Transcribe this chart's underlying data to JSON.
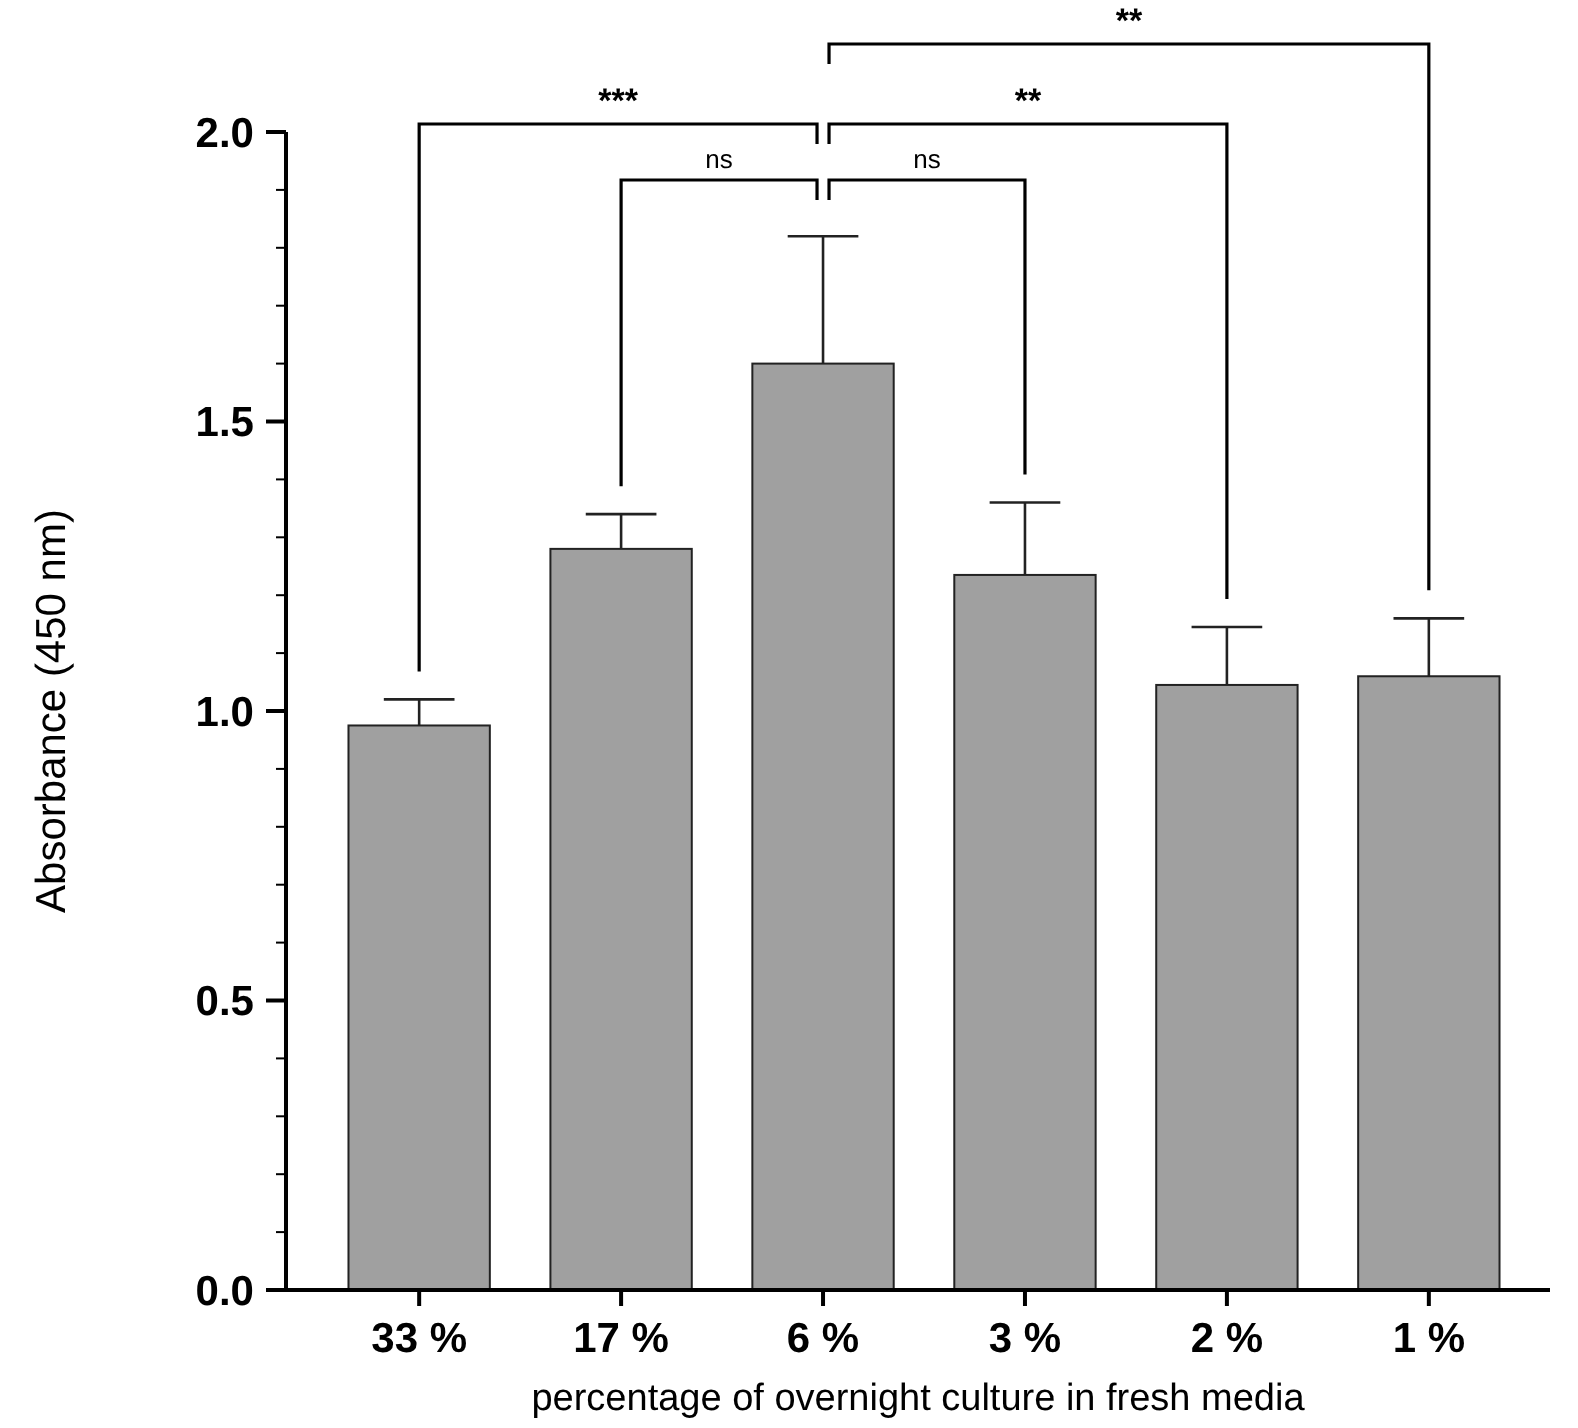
{
  "chart_data": {
    "type": "bar",
    "xlabel": "percentage of overnight culture in fresh media",
    "ylabel": "Absorbance (450 nm)",
    "categories": [
      "33 %",
      "17 %",
      "6 %",
      "3 %",
      "2 %",
      "1 %"
    ],
    "values": [
      0.975,
      1.28,
      1.6,
      1.235,
      1.045,
      1.06
    ],
    "errors": [
      [
        0.975,
        1.02
      ],
      [
        1.28,
        1.34
      ],
      [
        1.6,
        1.82
      ],
      [
        1.235,
        1.36
      ],
      [
        1.045,
        1.145
      ],
      [
        1.06,
        1.16
      ]
    ],
    "color": "#a0a0a0",
    "ylim": [
      0,
      2
    ],
    "yticks": [
      {
        "value": 0,
        "label": "0.0"
      },
      {
        "value": 0.1,
        "label": null
      },
      {
        "value": 0.2,
        "label": null
      },
      {
        "value": 0.3,
        "label": null
      },
      {
        "value": 0.4,
        "label": null
      },
      {
        "value": 0.5,
        "label": "0.5"
      },
      {
        "value": 0.6,
        "label": null
      },
      {
        "value": 0.7,
        "label": null
      },
      {
        "value": 0.8,
        "label": null
      },
      {
        "value": 0.9,
        "label": null
      },
      {
        "value": 1,
        "label": "1.0"
      },
      {
        "value": 1.1,
        "label": null
      },
      {
        "value": 1.2,
        "label": null
      },
      {
        "value": 1.3,
        "label": null
      },
      {
        "value": 1.4,
        "label": null
      },
      {
        "value": 1.5,
        "label": "1.5"
      },
      {
        "value": 1.6,
        "label": null
      },
      {
        "value": 1.7,
        "label": null
      },
      {
        "value": 1.8,
        "label": null
      },
      {
        "value": 1.9,
        "label": null
      },
      {
        "value": 2,
        "label": "2.0"
      }
    ],
    "annotations": [
      "***",
      "ns",
      "ns",
      "**",
      "**"
    ]
  }
}
